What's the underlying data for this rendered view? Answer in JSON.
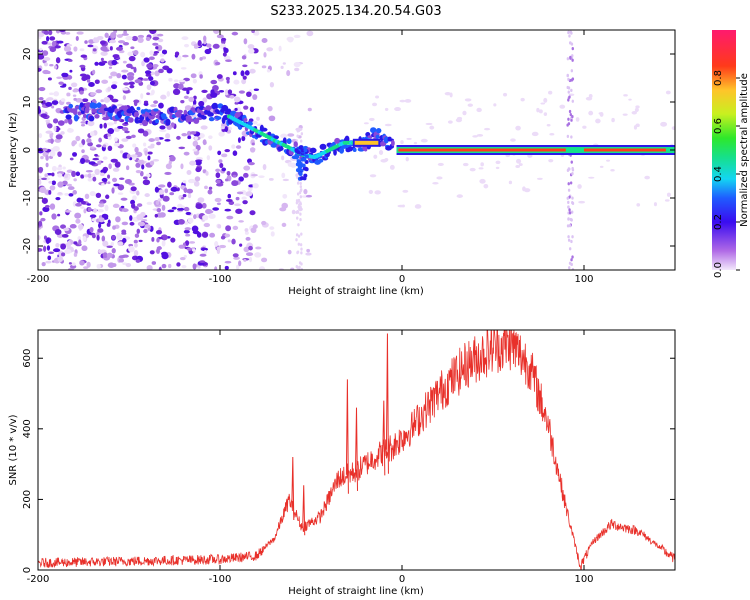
{
  "title": "S233.2025.134.20.54.G03",
  "chart_data": [
    {
      "type": "heatmap",
      "xlabel": "Height of straight line (km)",
      "ylabel": "Frequency (Hz)",
      "xlim": [
        -200,
        150
      ],
      "ylim": [
        -25,
        25
      ],
      "x_ticks": [
        -200,
        -100,
        0,
        100
      ],
      "y_ticks": [
        -20,
        -10,
        0,
        10,
        20
      ],
      "colorbar": {
        "label": "Normalized spectral amplitude",
        "range": [
          0,
          1
        ],
        "ticks": [
          "0.0",
          "0.2",
          "0.4",
          "0.6",
          "0.8"
        ]
      },
      "ridge": {
        "x": [
          -185,
          -160,
          -140,
          -120,
          -100,
          -90,
          -80,
          -70,
          -62,
          -55,
          -48,
          -40,
          -32,
          -20,
          -15,
          -10,
          -5,
          0,
          50,
          90,
          100,
          150
        ],
        "y": [
          8,
          8,
          7,
          7,
          8,
          6,
          4,
          2,
          0.5,
          -1,
          -1.5,
          0,
          1.5,
          1.5,
          3,
          2,
          0.5,
          0,
          0,
          0.5,
          0,
          0
        ]
      }
    },
    {
      "type": "line",
      "xlabel": "Height of straight line (km)",
      "ylabel": "SNR (10 * v/v)",
      "xlim": [
        -200,
        150
      ],
      "ylim": [
        0,
        680
      ],
      "x_ticks": [
        -200,
        -100,
        0,
        100
      ],
      "y_ticks": [
        0,
        200,
        400,
        600
      ],
      "color": "#e8302a",
      "envelope": {
        "x": [
          -200,
          -150,
          -100,
          -80,
          -70,
          -62,
          -55,
          -45,
          -35,
          -25,
          -15,
          -5,
          5,
          20,
          35,
          50,
          60,
          70,
          80,
          90,
          98,
          105,
          115,
          130,
          150
        ],
        "y": [
          20,
          25,
          30,
          40,
          90,
          200,
          120,
          150,
          260,
          280,
          320,
          350,
          400,
          500,
          580,
          630,
          640,
          580,
          420,
          180,
          10,
          80,
          130,
          110,
          30
        ]
      },
      "spikes": [
        {
          "x": -60,
          "y": 320
        },
        {
          "x": -54,
          "y": 240
        },
        {
          "x": -30,
          "y": 540
        },
        {
          "x": -25,
          "y": 460
        },
        {
          "x": -8,
          "y": 670
        },
        {
          "x": -10,
          "y": 480
        }
      ]
    }
  ]
}
